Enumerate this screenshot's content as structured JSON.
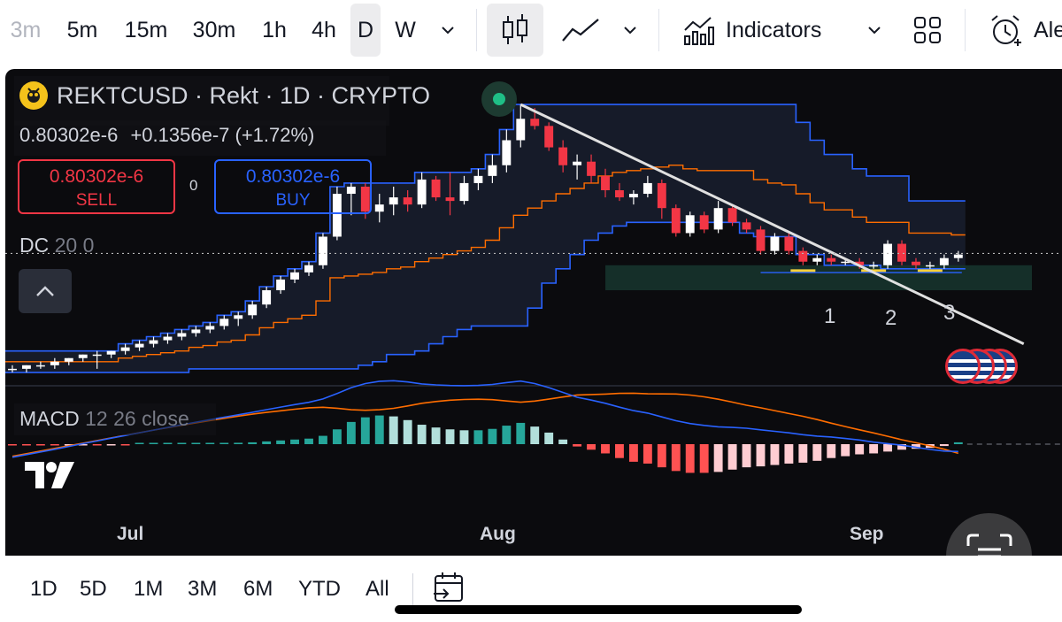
{
  "toolbar": {
    "intervals": [
      {
        "label": "3m",
        "dim": true
      },
      {
        "label": "5m"
      },
      {
        "label": "15m"
      },
      {
        "label": "30m"
      },
      {
        "label": "1h"
      },
      {
        "label": "4h"
      },
      {
        "label": "D",
        "selected": true
      },
      {
        "label": "W"
      }
    ],
    "indicators_label": "Indicators",
    "alert_label": "Ale"
  },
  "legend": {
    "symbol": "REKTCUSD · Rekt · 1D · CRYPTO",
    "price": "0.80302e-6",
    "change": "+0.1356e-7 (+1.72%)",
    "sell_price": "0.80302e-6",
    "sell_label": "SELL",
    "buy_price": "0.80302e-6",
    "buy_label": "BUY",
    "spread": "0",
    "dc_name": "DC",
    "dc_params": "20 0",
    "macd_name": "MACD",
    "macd_params": "12 26 close"
  },
  "annotations": {
    "touch_1": "1",
    "touch_2": "2",
    "touch_3": "3"
  },
  "time_axis": {
    "jul": "Jul",
    "aug": "Aug",
    "sep": "Sep"
  },
  "ranges": [
    "1D",
    "5D",
    "1M",
    "3M",
    "6M",
    "YTD",
    "All"
  ],
  "colors": {
    "bg": "#0b0b0e",
    "up": "#ffffff",
    "down": "#f23645",
    "dc_band": "#2962ff",
    "dc_basis": "#ff6d00",
    "macd_line": "#2962ff",
    "signal_line": "#ff6d00",
    "hist_up_strong": "#26a69a",
    "hist_up_weak": "#b2dfdb",
    "hist_down_strong": "#ff5252",
    "hist_down_weak": "#ffcdd2",
    "trendline": "#e0e0e0",
    "zone": "#16332c"
  },
  "chart_data": {
    "type": "candlestick",
    "interval": "1D",
    "price_unit": "e-6",
    "candles": [
      [
        0.48,
        0.49,
        0.47,
        0.48
      ],
      [
        0.48,
        0.49,
        0.47,
        0.49
      ],
      [
        0.49,
        0.5,
        0.48,
        0.49
      ],
      [
        0.49,
        0.51,
        0.48,
        0.5
      ],
      [
        0.5,
        0.51,
        0.49,
        0.51
      ],
      [
        0.51,
        0.52,
        0.5,
        0.52
      ],
      [
        0.52,
        0.53,
        0.48,
        0.52
      ],
      [
        0.52,
        0.53,
        0.51,
        0.53
      ],
      [
        0.53,
        0.55,
        0.52,
        0.54
      ],
      [
        0.54,
        0.56,
        0.53,
        0.55
      ],
      [
        0.55,
        0.57,
        0.54,
        0.56
      ],
      [
        0.56,
        0.58,
        0.55,
        0.57
      ],
      [
        0.57,
        0.59,
        0.56,
        0.58
      ],
      [
        0.58,
        0.6,
        0.57,
        0.59
      ],
      [
        0.59,
        0.61,
        0.58,
        0.6
      ],
      [
        0.6,
        0.63,
        0.59,
        0.62
      ],
      [
        0.62,
        0.64,
        0.6,
        0.63
      ],
      [
        0.63,
        0.67,
        0.62,
        0.66
      ],
      [
        0.66,
        0.71,
        0.65,
        0.7
      ],
      [
        0.7,
        0.74,
        0.69,
        0.73
      ],
      [
        0.73,
        0.76,
        0.72,
        0.75
      ],
      [
        0.75,
        0.78,
        0.74,
        0.77
      ],
      [
        0.77,
        0.86,
        0.76,
        0.85
      ],
      [
        0.85,
        0.99,
        0.84,
        0.97
      ],
      [
        0.97,
        1.0,
        0.91,
        0.99
      ],
      [
        0.99,
        1.0,
        0.9,
        0.92
      ],
      [
        0.92,
        0.97,
        0.89,
        0.94
      ],
      [
        0.94,
        0.99,
        0.91,
        0.96
      ],
      [
        0.96,
        0.98,
        0.92,
        0.94
      ],
      [
        0.94,
        1.03,
        0.93,
        1.01
      ],
      [
        1.01,
        1.02,
        0.95,
        0.96
      ],
      [
        0.96,
        1.03,
        0.91,
        0.95
      ],
      [
        0.95,
        1.02,
        0.94,
        1.0
      ],
      [
        1.0,
        1.04,
        0.98,
        1.02
      ],
      [
        1.02,
        1.08,
        1.0,
        1.05
      ],
      [
        1.05,
        1.15,
        1.03,
        1.12
      ],
      [
        1.12,
        1.22,
        1.1,
        1.18
      ],
      [
        1.18,
        1.21,
        1.15,
        1.16
      ],
      [
        1.16,
        1.17,
        1.09,
        1.1
      ],
      [
        1.1,
        1.12,
        1.03,
        1.05
      ],
      [
        1.05,
        1.08,
        1.01,
        1.06
      ],
      [
        1.06,
        1.08,
        1.0,
        1.02
      ],
      [
        1.02,
        1.04,
        0.96,
        0.98
      ],
      [
        0.98,
        1.0,
        0.95,
        0.96
      ],
      [
        0.96,
        0.98,
        0.94,
        0.97
      ],
      [
        0.97,
        1.02,
        0.96,
        1.0
      ],
      [
        1.0,
        1.01,
        0.9,
        0.93
      ],
      [
        0.93,
        0.94,
        0.85,
        0.86
      ],
      [
        0.86,
        0.92,
        0.85,
        0.91
      ],
      [
        0.91,
        0.92,
        0.86,
        0.87
      ],
      [
        0.87,
        0.95,
        0.86,
        0.93
      ],
      [
        0.93,
        0.94,
        0.88,
        0.89
      ],
      [
        0.89,
        0.9,
        0.86,
        0.87
      ],
      [
        0.87,
        0.88,
        0.8,
        0.81
      ],
      [
        0.81,
        0.86,
        0.8,
        0.85
      ],
      [
        0.85,
        0.86,
        0.8,
        0.81
      ],
      [
        0.81,
        0.82,
        0.77,
        0.78
      ],
      [
        0.78,
        0.8,
        0.77,
        0.79
      ],
      [
        0.79,
        0.8,
        0.77,
        0.78
      ],
      [
        0.78,
        0.79,
        0.77,
        0.78
      ],
      [
        0.78,
        0.79,
        0.76,
        0.77
      ],
      [
        0.77,
        0.78,
        0.76,
        0.77
      ],
      [
        0.77,
        0.84,
        0.76,
        0.83
      ],
      [
        0.83,
        0.84,
        0.77,
        0.78
      ],
      [
        0.78,
        0.79,
        0.76,
        0.77
      ],
      [
        0.77,
        0.78,
        0.76,
        0.77
      ],
      [
        0.77,
        0.8,
        0.76,
        0.79
      ],
      [
        0.79,
        0.81,
        0.78,
        0.8
      ]
    ],
    "donchian": {
      "upper": [
        0.53,
        0.53,
        0.53,
        0.53,
        0.53,
        0.53,
        0.53,
        0.53,
        0.55,
        0.56,
        0.57,
        0.58,
        0.59,
        0.6,
        0.61,
        0.63,
        0.64,
        0.67,
        0.71,
        0.74,
        0.76,
        0.78,
        0.86,
        0.99,
        1.0,
        1.0,
        1.0,
        1.0,
        1.0,
        1.03,
        1.03,
        1.03,
        1.03,
        1.04,
        1.08,
        1.15,
        1.22,
        1.22,
        1.22,
        1.22,
        1.22,
        1.22,
        1.22,
        1.22,
        1.22,
        1.22,
        1.22,
        1.22,
        1.22,
        1.22,
        1.22,
        1.22,
        1.22,
        1.22,
        1.22,
        1.22,
        1.17,
        1.12,
        1.08,
        1.08,
        1.04,
        1.02,
        1.02,
        1.02,
        0.95,
        0.95,
        0.95,
        0.95
      ],
      "basis": [
        0.5,
        0.5,
        0.5,
        0.5,
        0.5,
        0.5,
        0.5,
        0.5,
        0.51,
        0.515,
        0.52,
        0.525,
        0.53,
        0.54,
        0.545,
        0.555,
        0.56,
        0.575,
        0.595,
        0.61,
        0.62,
        0.63,
        0.67,
        0.735,
        0.74,
        0.745,
        0.75,
        0.76,
        0.765,
        0.78,
        0.79,
        0.8,
        0.81,
        0.82,
        0.84,
        0.875,
        0.91,
        0.93,
        0.95,
        0.97,
        0.985,
        1.0,
        1.02,
        1.03,
        1.035,
        1.04,
        1.045,
        1.05,
        1.04,
        1.035,
        1.035,
        1.035,
        1.035,
        1.01,
        1.0,
        0.995,
        0.97,
        0.945,
        0.925,
        0.925,
        0.905,
        0.89,
        0.89,
        0.89,
        0.86,
        0.86,
        0.86,
        0.855
      ],
      "lower": [
        0.47,
        0.47,
        0.47,
        0.47,
        0.47,
        0.47,
        0.47,
        0.47,
        0.47,
        0.47,
        0.47,
        0.47,
        0.47,
        0.48,
        0.48,
        0.48,
        0.48,
        0.48,
        0.48,
        0.48,
        0.48,
        0.48,
        0.48,
        0.48,
        0.48,
        0.49,
        0.5,
        0.52,
        0.52,
        0.53,
        0.55,
        0.57,
        0.59,
        0.6,
        0.6,
        0.6,
        0.6,
        0.65,
        0.72,
        0.76,
        0.8,
        0.84,
        0.86,
        0.88,
        0.89,
        0.89,
        0.89,
        0.89,
        0.89,
        0.89,
        0.89,
        0.89,
        0.86,
        0.85,
        0.85,
        0.85,
        0.8,
        0.8,
        0.77,
        0.77,
        0.77,
        0.77,
        0.76,
        0.76,
        0.76,
        0.76,
        0.76,
        0.76
      ]
    },
    "macd_hist": [
      -0.02,
      -0.02,
      -0.02,
      -0.02,
      -0.015,
      -0.01,
      -0.01,
      -0.005,
      -0.005,
      0.0,
      0.0,
      0.005,
      0.01,
      0.015,
      0.02,
      0.025,
      0.03,
      0.04,
      0.06,
      0.08,
      0.1,
      0.12,
      0.18,
      0.32,
      0.48,
      0.58,
      0.62,
      0.6,
      0.52,
      0.42,
      0.36,
      0.32,
      0.3,
      0.3,
      0.33,
      0.4,
      0.46,
      0.38,
      0.25,
      0.1,
      -0.05,
      -0.12,
      -0.2,
      -0.3,
      -0.38,
      -0.42,
      -0.5,
      -0.58,
      -0.62,
      -0.62,
      -0.6,
      -0.55,
      -0.5,
      -0.48,
      -0.45,
      -0.42,
      -0.4,
      -0.36,
      -0.3,
      -0.26,
      -0.22,
      -0.2,
      -0.16,
      -0.12,
      -0.1,
      -0.08,
      -0.04,
      0.04
    ],
    "series": [
      {
        "name": "MACD"
      },
      {
        "name": "Signal"
      }
    ],
    "x_labels": [
      "Jul",
      "Aug",
      "Sep"
    ],
    "x_label_index": [
      10,
      39,
      60
    ],
    "x_pad_right": 10,
    "price_range": [
      0.44,
      1.25
    ],
    "current_price": 0.803,
    "trendline": {
      "from": [
        36,
        1.22
      ],
      "to": [
        69,
        0.55
      ]
    },
    "support_zone": [
      0.7,
      0.77
    ],
    "support_touches": [
      [
        56,
        "1"
      ],
      [
        61,
        "2"
      ],
      [
        65,
        "3"
      ]
    ]
  }
}
